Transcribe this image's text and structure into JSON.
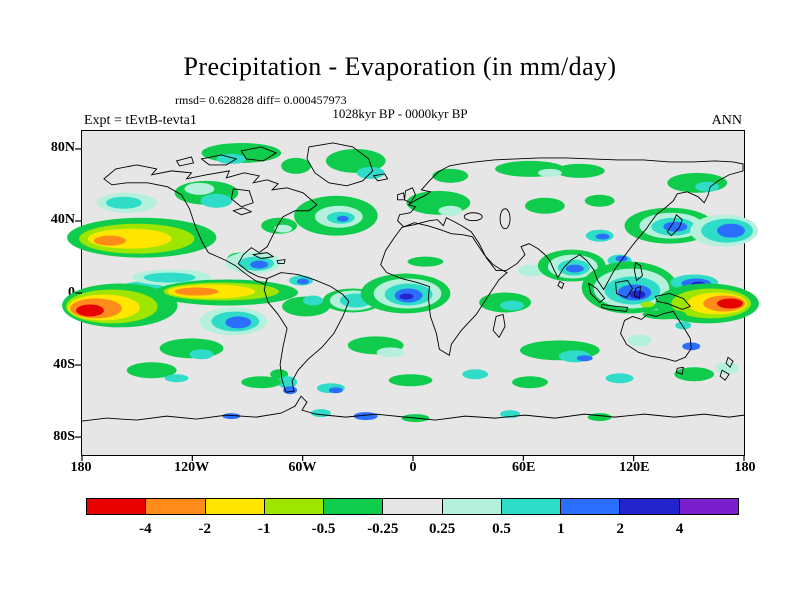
{
  "figure": {
    "title": "Precipitation - Evaporation (in mm/day)",
    "stats_line": "rmsd= 0.628828 diff= 0.000457973",
    "period_line": "1028kyr BP - 0000kyr BP",
    "experiment_label": "Expt = tEvtB-tevta1",
    "season_label": "ANN"
  },
  "axes": {
    "lat_ticks": [
      "80N",
      "40N",
      "0",
      "40S",
      "80S"
    ],
    "lon_ticks": [
      "180",
      "120W",
      "60W",
      "0",
      "60E",
      "120E",
      "180"
    ]
  },
  "colorbar": {
    "labels": [
      "-4",
      "-2",
      "-1",
      "-0.5",
      "-0.25",
      "0.25",
      "0.5",
      "1",
      "2",
      "4"
    ],
    "colors": [
      "#e60000",
      "#ff8c1a",
      "#ffe600",
      "#9ee600",
      "#0fcc4c",
      "#e6e6e6",
      "#b4f0dc",
      "#2edcc8",
      "#2a6fff",
      "#2424cc",
      "#7a1fcc"
    ],
    "neutral_fill": "#e6e6e6"
  },
  "chart_data": {
    "type": "heatmap",
    "subtype": "filled-contour world map (equirectangular)",
    "title": "Precipitation - Evaporation (in mm/day)",
    "variable": "Precipitation minus Evaporation difference",
    "units": "mm/day",
    "experiment": "Expt = tEvtB-tevta1",
    "difference_of": "1028kyr BP - 0000kyr BP",
    "season": "ANN",
    "rmsd": 0.628828,
    "diff": 0.000457973,
    "lon_range": [
      -180,
      180
    ],
    "lat_range": [
      -90,
      90
    ],
    "lon_tick_labels": [
      "180",
      "120W",
      "60W",
      "0",
      "60E",
      "120E",
      "180"
    ],
    "lat_tick_labels": [
      "80N",
      "40N",
      "0",
      "40S",
      "80S"
    ],
    "contour_levels": [
      -4,
      -2,
      -1,
      -0.5,
      -0.25,
      0.25,
      0.5,
      1,
      2,
      4
    ],
    "segments": [
      {
        "range": "below -4",
        "color": "#e60000"
      },
      {
        "range": "-4 to -2",
        "color": "#ff8c1a"
      },
      {
        "range": "-2 to -1",
        "color": "#ffe600"
      },
      {
        "range": "-1 to -0.5",
        "color": "#9ee600"
      },
      {
        "range": "-0.5 to -0.25",
        "color": "#0fcc4c"
      },
      {
        "range": "-0.25 to 0.25",
        "color": "#e6e6e6"
      },
      {
        "range": "0.25 to 0.5",
        "color": "#b4f0dc"
      },
      {
        "range": "0.5 to 1",
        "color": "#2edcc8"
      },
      {
        "range": "1 to 2",
        "color": "#2a6fff"
      },
      {
        "range": "2 to 4",
        "color": "#2424cc"
      },
      {
        "range": "above 4",
        "color": "#7a1fcc"
      }
    ],
    "notable_features": [
      "Strong negative anomalies (orange/red, below -2 mm/day) in the equatorial Pacific at both map edges near the dateline",
      "Yellow/orange negative band along the eastern equatorial Pacific with green fringe",
      "Positive anomalies (cyan/blue up to 2+ mm/day) over the Maritime Continent, Bay of Bengal/India, Caribbean, tropical Atlantic and Gulf of Guinea with small dark-blue cores",
      "Blue/cyan patches in the Kuroshio region east of Japan and the subtropical western North Pacific",
      "Yellow-green negative streak in the northeast Pacific near 40N",
      "Green weak-negative patches over the North Atlantic, Europe, Canada and Siberia",
      "Scattered weak anomalies (0.25-1 mm/day) along the Southern Ocean and near the Antarctic coast",
      "Near-neutral gray (|value| < 0.25 mm/day) over most continental interiors and subtropical oceans"
    ]
  }
}
